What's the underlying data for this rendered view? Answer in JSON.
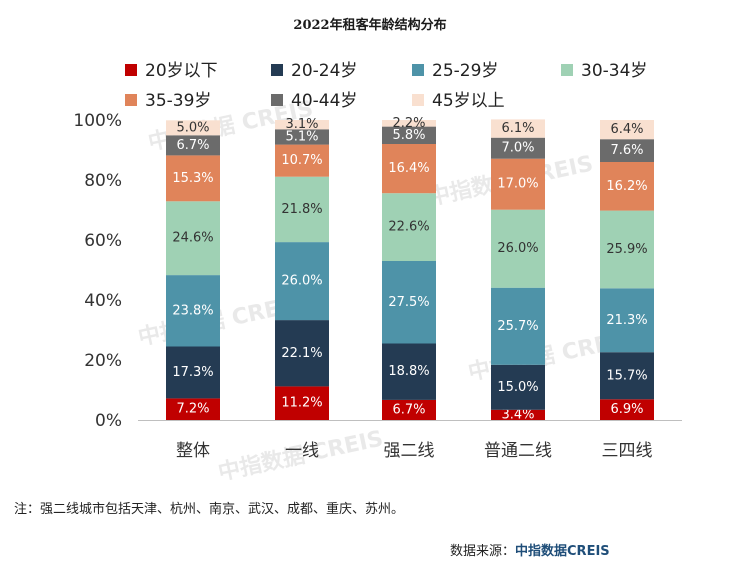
{
  "title": "2022年租客年龄结构分布",
  "footnote": "注：强二线城市包括天津、杭州、南京、武汉、成都、重庆、苏州。",
  "source_prefix": "数据来源：",
  "source_brand": "中指数据CREIS",
  "watermark": "中指数据 CREIS",
  "colors": {
    "20岁以下": "#c00000",
    "20-24岁": "#243b53",
    "25-29岁": "#4e93a8",
    "30-34岁": "#9fd1b4",
    "35-39岁": "#e0845a",
    "40-44岁": "#6b6b6b",
    "45岁以上": "#f9e0d0"
  },
  "chart_data": {
    "type": "bar",
    "stacked": true,
    "categories": [
      "整体",
      "一线",
      "强二线",
      "普通二线",
      "三四线"
    ],
    "y_ticks": [
      "0%",
      "20%",
      "40%",
      "60%",
      "80%",
      "100%"
    ],
    "ylim": [
      0,
      100
    ],
    "legend_position": "top",
    "series": [
      {
        "name": "20岁以下",
        "values": [
          7.2,
          11.2,
          6.7,
          3.4,
          6.9
        ],
        "labels": [
          "7.2%",
          "11.2%",
          "6.7%",
          "3.4%",
          "6.9%"
        ]
      },
      {
        "name": "20-24岁",
        "values": [
          17.3,
          22.1,
          18.8,
          15.0,
          15.7
        ],
        "labels": [
          "17.3%",
          "22.1%",
          "18.8%",
          "15.0%",
          "15.7%"
        ]
      },
      {
        "name": "25-29岁",
        "values": [
          23.8,
          26.0,
          27.5,
          25.7,
          21.3
        ],
        "labels": [
          "23.8%",
          "26.0%",
          "27.5%",
          "25.7%",
          "21.3%"
        ]
      },
      {
        "name": "30-34岁",
        "values": [
          24.6,
          21.8,
          22.6,
          26.0,
          25.9
        ],
        "labels": [
          "24.6%",
          "21.8%",
          "22.6%",
          "26.0%",
          "25.9%"
        ]
      },
      {
        "name": "35-39岁",
        "values": [
          15.3,
          10.7,
          16.4,
          17.0,
          16.2
        ],
        "labels": [
          "15.3%",
          "10.7%",
          "16.4%",
          "17.0%",
          "16.2%"
        ]
      },
      {
        "name": "40-44岁",
        "values": [
          6.7,
          5.1,
          5.8,
          7.0,
          7.6
        ],
        "labels": [
          "6.7%",
          "5.1%",
          "5.8%",
          "7.0%",
          "7.6%"
        ]
      },
      {
        "name": "45岁以上",
        "values": [
          5.0,
          3.1,
          2.2,
          6.1,
          6.4
        ],
        "labels": [
          "5.0%",
          "3.1%",
          "2.2%",
          "6.1%",
          "6.4%"
        ]
      }
    ]
  }
}
